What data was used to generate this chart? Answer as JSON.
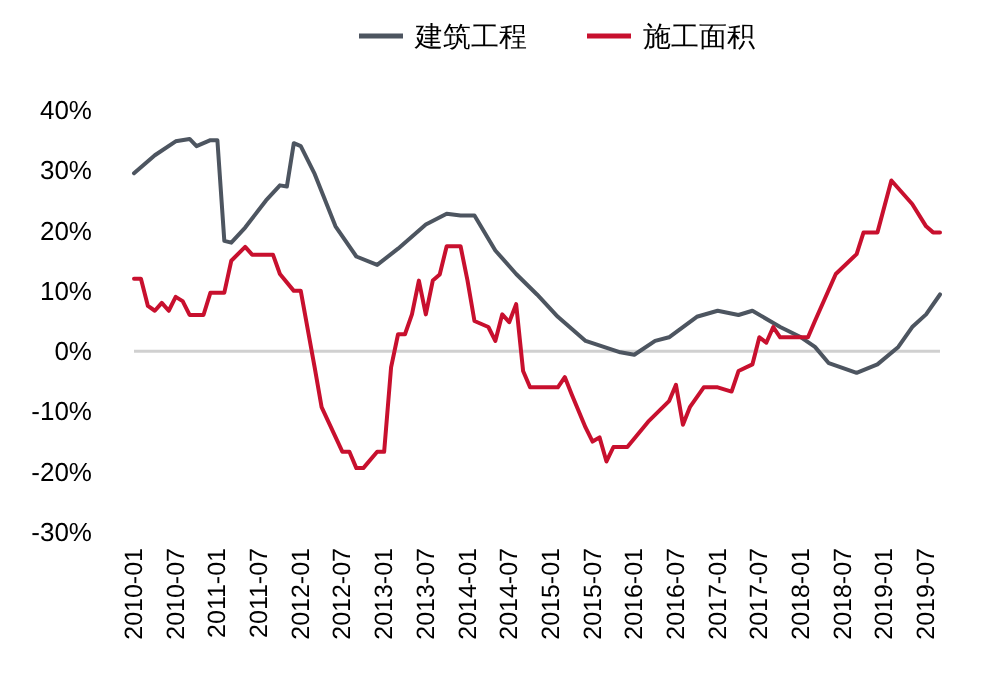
{
  "chart_data": {
    "type": "line",
    "legend": "top",
    "ref_lines": [
      {
        "axis": "y",
        "value": 0,
        "color": "#d0d0d0"
      }
    ],
    "xlim": [
      "2010-01",
      "2019-09"
    ],
    "xticks": [
      "2010-01",
      "2010-07",
      "2011-01",
      "2011-07",
      "2012-01",
      "2012-07",
      "2013-01",
      "2013-07",
      "2014-01",
      "2014-07",
      "2015-01",
      "2015-07",
      "2016-01",
      "2016-07",
      "2017-01",
      "2017-07",
      "2018-01",
      "2018-07",
      "2019-01",
      "2019-07"
    ],
    "ylim": [
      -30,
      40
    ],
    "yticks": [
      {
        "value": -30,
        "label": "-30%"
      },
      {
        "value": -20,
        "label": "-20%"
      },
      {
        "value": -10,
        "label": "-10%"
      },
      {
        "value": 0,
        "label": "0%"
      },
      {
        "value": 10,
        "label": "10%"
      },
      {
        "value": 20,
        "label": "20%"
      },
      {
        "value": 30,
        "label": "30%"
      },
      {
        "value": 40,
        "label": "40%"
      }
    ],
    "series": [
      {
        "name": "建筑工程",
        "color": "#4d5560",
        "x": [
          "2010-01",
          "2010-04",
          "2010-07",
          "2010-09",
          "2010-10",
          "2010-12",
          "2011-01",
          "2011-02",
          "2011-03",
          "2011-05",
          "2011-08",
          "2011-10",
          "2011-11",
          "2011-12",
          "2012-01",
          "2012-03",
          "2012-06",
          "2012-09",
          "2012-12",
          "2013-03",
          "2013-07",
          "2013-10",
          "2013-12",
          "2014-02",
          "2014-05",
          "2014-08",
          "2014-11",
          "2015-02",
          "2015-06",
          "2015-11",
          "2016-01",
          "2016-04",
          "2016-06",
          "2016-10",
          "2017-01",
          "2017-04",
          "2017-06",
          "2017-10",
          "2018-01",
          "2018-03",
          "2018-05",
          "2018-09",
          "2018-12",
          "2019-03",
          "2019-05",
          "2019-07",
          "2019-09"
        ],
        "values": [
          29.5,
          32.5,
          34.8,
          35.2,
          34,
          35,
          35,
          18.3,
          18,
          20.5,
          25,
          27.5,
          27.3,
          34.5,
          34,
          29.4,
          20.7,
          15.7,
          14.3,
          17,
          21,
          22.8,
          22.5,
          22.5,
          16.7,
          12.8,
          9.4,
          5.7,
          1.7,
          -0.2,
          -0.6,
          1.7,
          2.3,
          5.7,
          6.7,
          6,
          6.7,
          4,
          2.3,
          0.7,
          -2,
          -3.6,
          -2.2,
          0.7,
          4,
          6.1,
          9.4
        ]
      },
      {
        "name": "施工面积",
        "color": "#c8102e",
        "x": [
          "2010-01",
          "2010-02",
          "2010-03",
          "2010-04",
          "2010-05",
          "2010-06",
          "2010-07",
          "2010-08",
          "2010-09",
          "2010-11",
          "2010-12",
          "2011-02",
          "2011-03",
          "2011-05",
          "2011-06",
          "2011-09",
          "2011-10",
          "2011-12",
          "2012-01",
          "2012-03",
          "2012-04",
          "2012-07",
          "2012-08",
          "2012-09",
          "2012-10",
          "2012-12",
          "2013-01",
          "2013-02",
          "2013-03",
          "2013-04",
          "2013-05",
          "2013-06",
          "2013-07",
          "2013-08",
          "2013-09",
          "2013-10",
          "2013-12",
          "2014-01",
          "2014-02",
          "2014-04",
          "2014-05",
          "2014-06",
          "2014-07",
          "2014-08",
          "2014-09",
          "2014-10",
          "2015-02",
          "2015-03",
          "2015-04",
          "2015-06",
          "2015-07",
          "2015-08",
          "2015-09",
          "2015-10",
          "2015-12",
          "2016-03",
          "2016-06",
          "2016-07",
          "2016-08",
          "2016-09",
          "2016-11",
          "2017-01",
          "2017-03",
          "2017-04",
          "2017-06",
          "2017-07",
          "2017-08",
          "2017-09",
          "2017-10",
          "2018-02",
          "2018-03",
          "2018-06",
          "2018-09",
          "2018-10",
          "2018-12",
          "2019-02",
          "2019-05",
          "2019-07",
          "2019-08",
          "2019-09"
        ],
        "values": [
          12,
          12,
          7.5,
          6.7,
          8,
          6.7,
          9,
          8.3,
          6,
          6,
          9.7,
          9.7,
          15,
          17.3,
          16,
          16,
          12.8,
          10,
          10,
          -2.7,
          -9.3,
          -16.7,
          -16.7,
          -19.4,
          -19.4,
          -16.7,
          -16.7,
          -2.7,
          2.8,
          2.8,
          6.1,
          11.7,
          6.1,
          11.7,
          12.7,
          17.4,
          17.4,
          11.7,
          5,
          4,
          1.7,
          6.1,
          4.8,
          7.8,
          -3.3,
          -6,
          -6,
          -4.3,
          -7.2,
          -12.7,
          -15,
          -14.3,
          -18.3,
          -15.9,
          -15.9,
          -11.7,
          -8.3,
          -5.6,
          -12.2,
          -9.3,
          -6,
          -6,
          -6.7,
          -3.3,
          -2.2,
          2.3,
          1.4,
          4,
          2.3,
          2.3,
          5,
          12.8,
          16.1,
          19.7,
          19.7,
          28.3,
          24.4,
          20.7,
          19.7,
          19.7
        ]
      }
    ]
  }
}
